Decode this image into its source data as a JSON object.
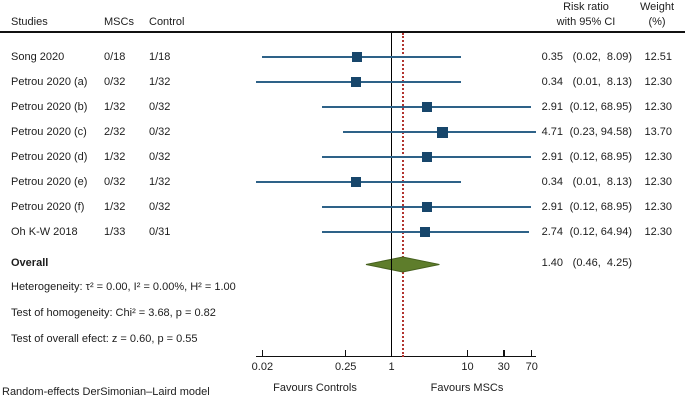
{
  "header": {
    "studies": "Studies",
    "mscs": "MSCs",
    "control": "Control",
    "risk_ratio_line1": "Risk ratio",
    "risk_ratio_line2": "with 95% CI",
    "weight_line1": "Weight",
    "weight_line2": "(%)"
  },
  "rows": [
    {
      "study": "Song 2020",
      "mscs": "0/18",
      "control": "1/18",
      "rr_text": "0.35",
      "ci_text": "(0.02,  8.09)",
      "weight_text": "12.51",
      "rr": 0.35,
      "lo": 0.02,
      "hi": 8.09,
      "weight": 12.51
    },
    {
      "study": "Petrou 2020 (a)",
      "mscs": "0/32",
      "control": "1/32",
      "rr_text": "0.34",
      "ci_text": "(0.01,  8.13)",
      "weight_text": "12.30",
      "rr": 0.34,
      "lo": 0.01,
      "hi": 8.13,
      "weight": 12.3
    },
    {
      "study": "Petrou 2020 (b)",
      "mscs": "1/32",
      "control": "0/32",
      "rr_text": "2.91",
      "ci_text": "(0.12, 68.95)",
      "weight_text": "12.30",
      "rr": 2.91,
      "lo": 0.12,
      "hi": 68.95,
      "weight": 12.3
    },
    {
      "study": "Petrou 2020 (c)",
      "mscs": "2/32",
      "control": "0/32",
      "rr_text": "4.71",
      "ci_text": "(0.23, 94.58)",
      "weight_text": "13.70",
      "rr": 4.71,
      "lo": 0.23,
      "hi": 94.58,
      "weight": 13.7
    },
    {
      "study": "Petrou 2020 (d)",
      "mscs": "1/32",
      "control": "0/32",
      "rr_text": "2.91",
      "ci_text": "(0.12, 68.95)",
      "weight_text": "12.30",
      "rr": 2.91,
      "lo": 0.12,
      "hi": 68.95,
      "weight": 12.3
    },
    {
      "study": "Petrou 2020 (e)",
      "mscs": "0/32",
      "control": "1/32",
      "rr_text": "0.34",
      "ci_text": "(0.01,  8.13)",
      "weight_text": "12.30",
      "rr": 0.34,
      "lo": 0.01,
      "hi": 8.13,
      "weight": 12.3
    },
    {
      "study": "Petrou 2020 (f)",
      "mscs": "1/32",
      "control": "0/32",
      "rr_text": "2.91",
      "ci_text": "(0.12, 68.95)",
      "weight_text": "12.30",
      "rr": 2.91,
      "lo": 0.12,
      "hi": 68.95,
      "weight": 12.3
    },
    {
      "study": "Oh K-W 2018",
      "mscs": "1/33",
      "control": "0/31",
      "rr_text": "2.74",
      "ci_text": "(0.12, 64.94)",
      "weight_text": "12.30",
      "rr": 2.74,
      "lo": 0.12,
      "hi": 64.94,
      "weight": 12.3
    }
  ],
  "overall": {
    "label": "Overall",
    "rr_text": "1.40",
    "ci_text": "(0.46,  4.25)",
    "rr": 1.4,
    "lo": 0.46,
    "hi": 4.25
  },
  "stats": {
    "heterogeneity": "Heterogeneity: τ² = 0.00, I² = 0.00%, H² = 1.00",
    "homogeneity": "Test of homogeneity: Chi² = 3.68, p = 0.82",
    "overall_effect": "Test of overall efect: z = 0.60, p = 0.55"
  },
  "footnote": "Random-effects DerSimonian–Laird model",
  "axis": {
    "ticks": [
      {
        "label": "0.02",
        "value": 0.02
      },
      {
        "label": "0.25",
        "value": 0.25
      },
      {
        "label": "1",
        "value": 1
      },
      {
        "label": "10",
        "value": 10
      },
      {
        "label": "30",
        "value": 30
      },
      {
        "label": "70",
        "value": 70
      }
    ],
    "favours_left": "Favours Controls",
    "favours_right": "Favours MSCs",
    "reference_value": 1,
    "overall_value": 1.4
  },
  "colors": {
    "ci_line": "#2e6288",
    "marker": "#17466b",
    "diamond_fill": "#5e7d2b",
    "diamond_stroke": "#46611e",
    "reference_line": "#000000",
    "overall_line": "#b2342f",
    "rule": "#111111"
  },
  "chart_data": {
    "type": "forest",
    "title": "",
    "effect_measure": "Risk ratio with 95% CI",
    "x_scale": "log",
    "x_ticks": [
      0.02,
      0.25,
      1,
      10,
      30,
      70
    ],
    "x_range": [
      0.017,
      79
    ],
    "xlabel_left": "Favours Controls",
    "xlabel_right": "Favours MSCs",
    "reference_line": 1,
    "overall_line": 1.4,
    "studies": [
      {
        "name": "Song 2020",
        "mscs_events": "0/18",
        "control_events": "1/18",
        "rr": 0.35,
        "ci_low": 0.02,
        "ci_high": 8.09,
        "weight_pct": 12.51
      },
      {
        "name": "Petrou 2020 (a)",
        "mscs_events": "0/32",
        "control_events": "1/32",
        "rr": 0.34,
        "ci_low": 0.01,
        "ci_high": 8.13,
        "weight_pct": 12.3
      },
      {
        "name": "Petrou 2020 (b)",
        "mscs_events": "1/32",
        "control_events": "0/32",
        "rr": 2.91,
        "ci_low": 0.12,
        "ci_high": 68.95,
        "weight_pct": 12.3
      },
      {
        "name": "Petrou 2020 (c)",
        "mscs_events": "2/32",
        "control_events": "0/32",
        "rr": 4.71,
        "ci_low": 0.23,
        "ci_high": 94.58,
        "weight_pct": 13.7
      },
      {
        "name": "Petrou 2020 (d)",
        "mscs_events": "1/32",
        "control_events": "0/32",
        "rr": 2.91,
        "ci_low": 0.12,
        "ci_high": 68.95,
        "weight_pct": 12.3
      },
      {
        "name": "Petrou 2020 (e)",
        "mscs_events": "0/32",
        "control_events": "1/32",
        "rr": 0.34,
        "ci_low": 0.01,
        "ci_high": 8.13,
        "weight_pct": 12.3
      },
      {
        "name": "Petrou 2020 (f)",
        "mscs_events": "1/32",
        "control_events": "0/32",
        "rr": 2.91,
        "ci_low": 0.12,
        "ci_high": 68.95,
        "weight_pct": 12.3
      },
      {
        "name": "Oh K-W 2018",
        "mscs_events": "1/33",
        "control_events": "0/31",
        "rr": 2.74,
        "ci_low": 0.12,
        "ci_high": 64.94,
        "weight_pct": 12.3
      }
    ],
    "overall": {
      "rr": 1.4,
      "ci_low": 0.46,
      "ci_high": 4.25
    },
    "heterogeneity": {
      "tau2": 0.0,
      "I2_pct": 0.0,
      "H2": 1.0
    },
    "test_homogeneity": {
      "chi2": 3.68,
      "p": 0.82
    },
    "test_overall_effect": {
      "z": 0.6,
      "p": 0.55
    },
    "model": "Random-effects DerSimonian–Laird"
  }
}
